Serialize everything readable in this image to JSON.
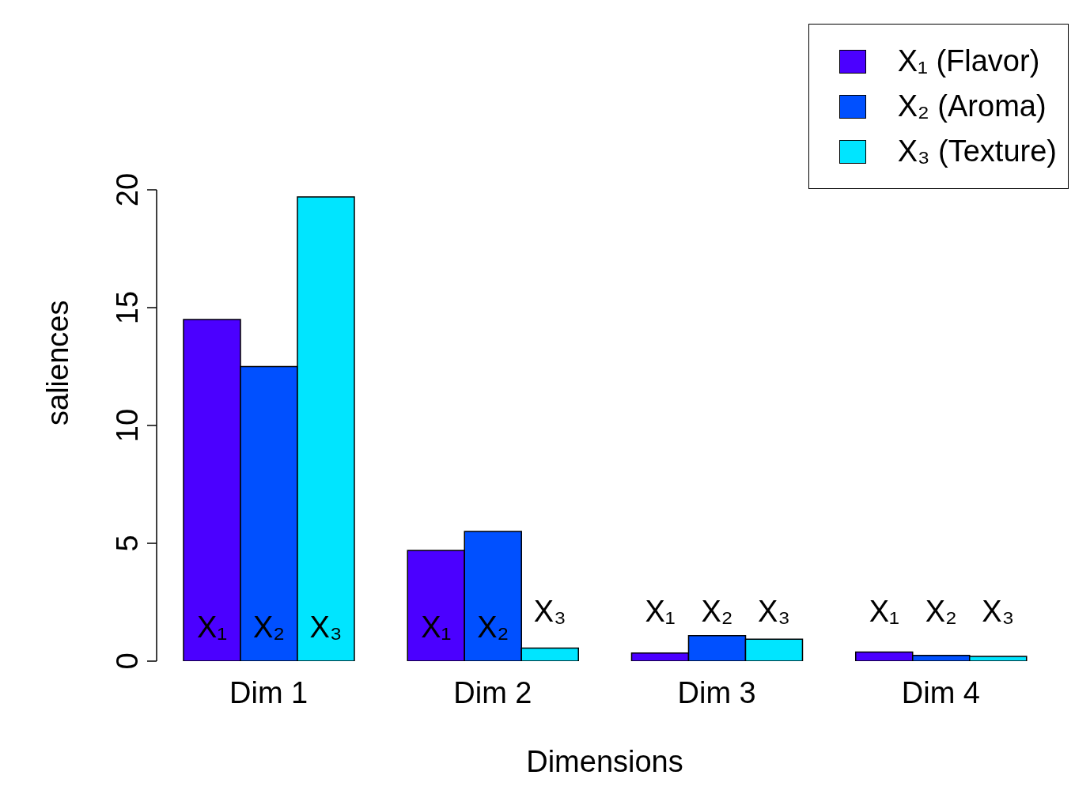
{
  "chart_data": {
    "type": "bar",
    "xlabel": "Dimensions",
    "ylabel": "saliences",
    "categories": [
      "Dim 1",
      "Dim 2",
      "Dim 3",
      "Dim 4"
    ],
    "series": [
      {
        "name": "X₁ (Flavor)",
        "color": "#4b00ff",
        "values": [
          14.5,
          4.7,
          0.34,
          0.39
        ],
        "value_labels": [
          "X₁",
          "X₁",
          "X₁",
          "X₁"
        ]
      },
      {
        "name": "X₂ (Aroma)",
        "color": "#0050ff",
        "values": [
          12.5,
          5.5,
          1.08,
          0.24
        ],
        "value_labels": [
          "X₂",
          "X₂",
          "X₂",
          "X₂"
        ]
      },
      {
        "name": "X₃ (Texture)",
        "color": "#00e5ff",
        "values": [
          19.7,
          0.55,
          0.93,
          0.2
        ],
        "value_labels": [
          "X₃",
          "X₃",
          "X₃",
          "X₃"
        ]
      }
    ],
    "ylim": [
      0,
      20
    ],
    "yticks": [
      0,
      5,
      10,
      15,
      20
    ],
    "grid": false,
    "legend": "top right"
  }
}
